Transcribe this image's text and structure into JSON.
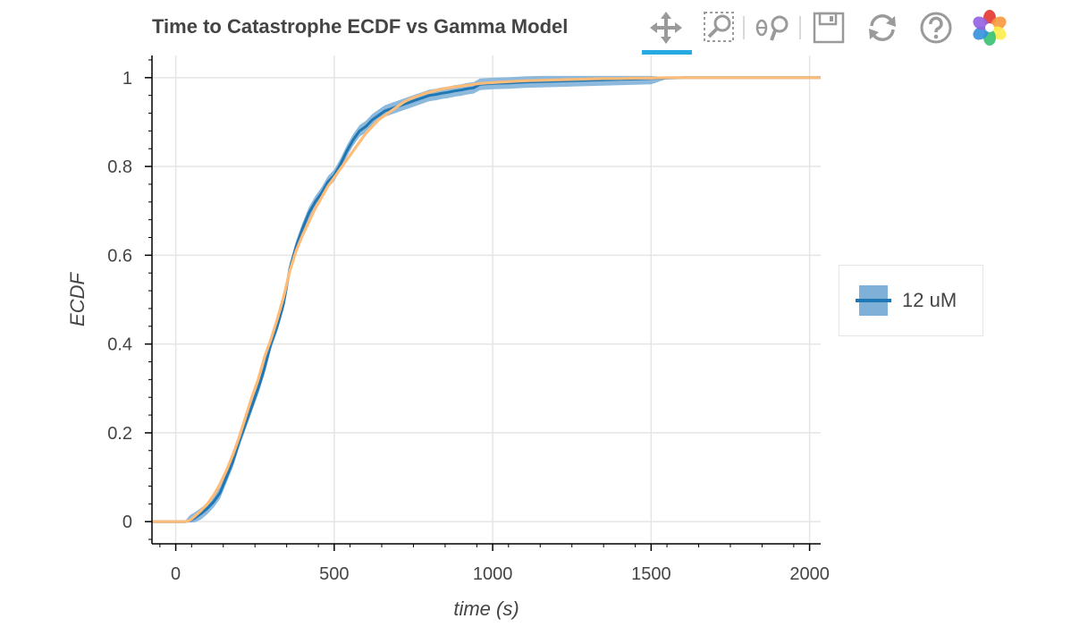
{
  "chart_data": {
    "type": "line",
    "title": "Time to Catastrophe ECDF vs Gamma Model",
    "xlabel": "time (s)",
    "ylabel": "ECDF",
    "xlim": [
      -75,
      2035
    ],
    "ylim": [
      -0.05,
      1.05
    ],
    "x_ticks": [
      0,
      500,
      1000,
      1500,
      2000
    ],
    "y_ticks": [
      0,
      0.2,
      0.4,
      0.6,
      0.8,
      1
    ],
    "x_tick_labels": [
      "0",
      "500",
      "1000",
      "1500",
      "2000"
    ],
    "y_tick_labels": [
      "0",
      "0.2",
      "0.4",
      "0.6",
      "0.8",
      "1"
    ],
    "grid": true,
    "legend_position": "right",
    "series": [
      {
        "name": "12 uM",
        "kind": "ecdf-with-confidence-band",
        "color": "#1f77b4",
        "band_color": "#7fb1d8",
        "x": [
          -75,
          30,
          45,
          60,
          80,
          100,
          120,
          140,
          160,
          180,
          200,
          220,
          240,
          260,
          280,
          300,
          320,
          340,
          360,
          380,
          400,
          420,
          440,
          460,
          480,
          500,
          520,
          540,
          560,
          580,
          600,
          620,
          640,
          660,
          680,
          700,
          720,
          740,
          760,
          780,
          800,
          820,
          840,
          860,
          880,
          900,
          920,
          940,
          960,
          980,
          1000,
          1050,
          1100,
          1150,
          1200,
          1250,
          1300,
          1350,
          1400,
          1450,
          1500,
          1550,
          1600,
          1700,
          1800,
          1900,
          2035
        ],
        "y": [
          0,
          0,
          0.002,
          0.008,
          0.018,
          0.03,
          0.045,
          0.065,
          0.1,
          0.135,
          0.18,
          0.22,
          0.26,
          0.3,
          0.345,
          0.4,
          0.44,
          0.49,
          0.57,
          0.62,
          0.66,
          0.695,
          0.72,
          0.74,
          0.765,
          0.78,
          0.805,
          0.835,
          0.86,
          0.88,
          0.89,
          0.905,
          0.915,
          0.925,
          0.93,
          0.935,
          0.94,
          0.945,
          0.95,
          0.955,
          0.96,
          0.962,
          0.965,
          0.967,
          0.97,
          0.972,
          0.975,
          0.977,
          0.985,
          0.986,
          0.987,
          0.988,
          0.99,
          0.991,
          0.992,
          0.993,
          0.994,
          0.995,
          0.996,
          0.997,
          0.998,
          0.999,
          1.0,
          1.0,
          1.0,
          1.0,
          1.0
        ],
        "band_half_width": 0.013
      },
      {
        "kind": "model-cdf",
        "color": "#ffbb78",
        "x": [
          -75,
          30,
          45,
          60,
          80,
          100,
          120,
          140,
          160,
          180,
          200,
          220,
          240,
          260,
          280,
          300,
          320,
          340,
          360,
          380,
          400,
          420,
          440,
          460,
          480,
          500,
          520,
          540,
          560,
          580,
          600,
          620,
          640,
          660,
          680,
          700,
          720,
          740,
          760,
          780,
          800,
          820,
          840,
          860,
          880,
          900,
          920,
          940,
          960,
          980,
          1000,
          1050,
          1100,
          1150,
          1200,
          1250,
          1300,
          1350,
          1400,
          1450,
          1500,
          1550,
          1600,
          1700,
          1800,
          1900,
          2035
        ],
        "y": [
          0,
          0,
          0.003,
          0.012,
          0.025,
          0.04,
          0.06,
          0.085,
          0.115,
          0.15,
          0.19,
          0.235,
          0.28,
          0.32,
          0.37,
          0.41,
          0.455,
          0.505,
          0.565,
          0.61,
          0.645,
          0.675,
          0.705,
          0.73,
          0.755,
          0.775,
          0.795,
          0.815,
          0.835,
          0.855,
          0.875,
          0.89,
          0.905,
          0.915,
          0.925,
          0.935,
          0.945,
          0.952,
          0.958,
          0.963,
          0.967,
          0.971,
          0.974,
          0.977,
          0.979,
          0.981,
          0.983,
          0.985,
          0.987,
          0.988,
          0.989,
          0.991,
          0.993,
          0.994,
          0.995,
          0.996,
          0.997,
          0.998,
          0.998,
          0.999,
          0.999,
          1.0,
          1.0,
          1.0,
          1.0,
          1.0,
          1.0
        ]
      }
    ]
  },
  "legend": {
    "items": [
      {
        "label": "12 uM"
      }
    ]
  },
  "toolbar": {
    "tools": [
      {
        "name": "pan-tool",
        "icon": "pan-icon",
        "active": true
      },
      {
        "name": "box-zoom-tool",
        "icon": "box-zoom-icon"
      },
      {
        "name": "wheel-zoom-tool",
        "icon": "wheel-zoom-icon"
      },
      {
        "name": "save-tool",
        "icon": "save-icon"
      },
      {
        "name": "reset-tool",
        "icon": "reset-icon"
      },
      {
        "name": "help-tool",
        "icon": "help-icon"
      },
      {
        "name": "bokeh-logo",
        "icon": "bokeh-logo-icon"
      }
    ],
    "active_color": "#26aae1"
  }
}
